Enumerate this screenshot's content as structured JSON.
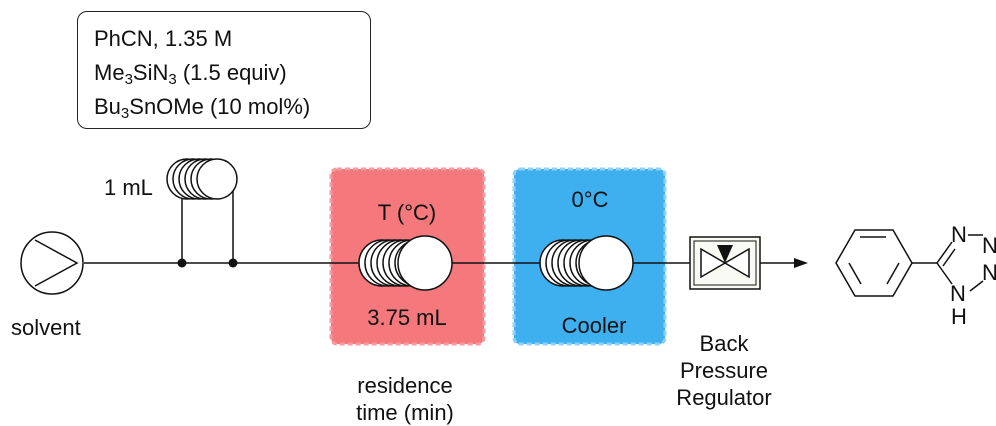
{
  "reagents": {
    "line1": "PhCN, 1.35 M",
    "line2_a": "Me",
    "line2_sub1": "3",
    "line2_b": "SiN",
    "line2_sub2": "3",
    "line2_c": " (1.5 equiv)",
    "line3_a": "Bu",
    "line3_sub1": "3",
    "line3_b": "SnOMe (10 mol%)"
  },
  "loop": {
    "volume": "1 mL"
  },
  "pump": {
    "label": "solvent"
  },
  "reactor": {
    "temperature": "T (°C)",
    "volume": "3.75 mL",
    "caption_line1": "residence",
    "caption_line2": "time (min)",
    "color": "#f4787c"
  },
  "cooler": {
    "temperature": "0°C",
    "label": "Cooler",
    "color": "#3fb0ef"
  },
  "bpr": {
    "line1": "Back",
    "line2": "Pressure",
    "line3": "Regulator"
  },
  "product": {
    "atom_n1": "N",
    "atom_n2": "N",
    "atom_n3": "N",
    "atom_nh": "N",
    "atom_h": "H"
  }
}
